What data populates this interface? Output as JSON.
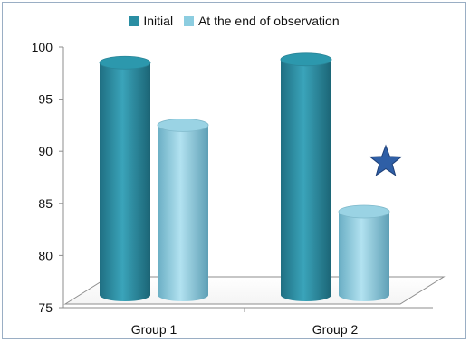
{
  "chart_data": {
    "type": "bar",
    "categories": [
      "Group 1",
      "Group 2"
    ],
    "series": [
      {
        "name": "Initial",
        "values": [
          98.5,
          98.8
        ],
        "color": "#2a8ea3"
      },
      {
        "name": "At the end of observation",
        "values": [
          92.5,
          84.2
        ],
        "color": "#8ccde0"
      }
    ],
    "yticks": [
      "75",
      "80",
      "85",
      "90",
      "95",
      "100"
    ],
    "ylim": [
      75,
      100
    ],
    "legend_position": "top",
    "annotation": {
      "shape": "star",
      "category": "Group 2",
      "color": "#2f5fa6"
    }
  }
}
